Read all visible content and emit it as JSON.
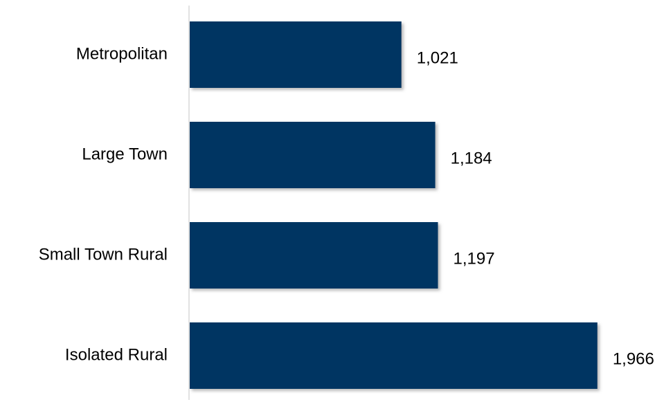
{
  "chart_data": {
    "type": "bar",
    "orientation": "horizontal",
    "categories": [
      "Metropolitan",
      "Large Town",
      "Small Town Rural",
      "Isolated Rural"
    ],
    "values": [
      1021,
      1184,
      1197,
      1966
    ],
    "value_labels": [
      "1,021",
      "1,184",
      "1,197",
      "1,966"
    ],
    "title": "",
    "xlabel": "",
    "ylabel": "",
    "xlim": [
      0,
      2000
    ],
    "grid": false,
    "legend": "none",
    "colors": {
      "bar": "#003562",
      "axis": "#d9d9d9",
      "shadow": "#8c8c8c"
    }
  }
}
